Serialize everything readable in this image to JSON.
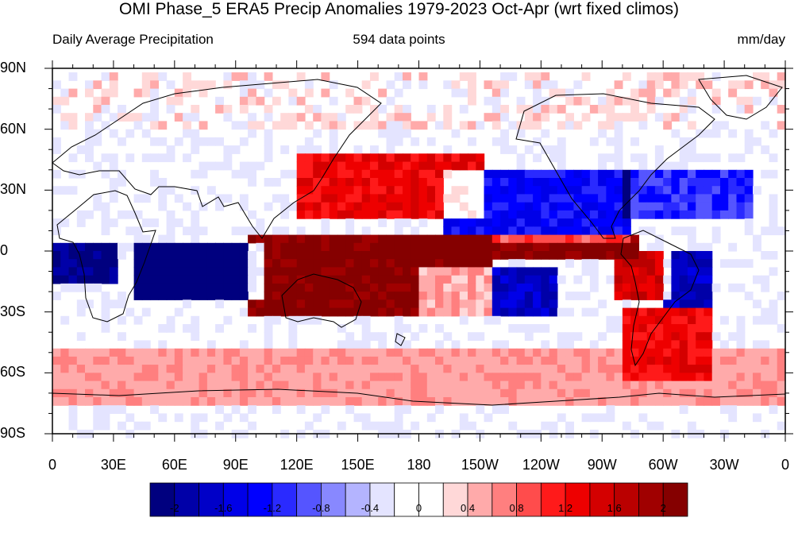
{
  "title": "OMI Phase_5 ERA5 Precip Anomalies 1979-2023 Oct-Apr (wrt fixed climos)",
  "subtitle_left": "Daily Average Precipitation",
  "subtitle_center": "594 data points",
  "subtitle_right": "mm/day",
  "lat_labels": [
    "90N",
    "60N",
    "30N",
    "0",
    "30S",
    "60S",
    "90S"
  ],
  "lon_labels": [
    "0",
    "30E",
    "60E",
    "90E",
    "120E",
    "150E",
    "180",
    "150W",
    "120W",
    "90W",
    "60W",
    "30W",
    "0"
  ],
  "colorbar": {
    "colors": [
      "#00007f",
      "#0000a8",
      "#0000c8",
      "#0000e8",
      "#0000ff",
      "#2a2aff",
      "#5555ff",
      "#8888ff",
      "#b4b4ff",
      "#e4e4ff",
      "#ffffff",
      "#ffffff",
      "#ffd8d8",
      "#ffaaaa",
      "#ff7f7f",
      "#ff4c4c",
      "#ff1a1a",
      "#ee0000",
      "#d40000",
      "#ba0000",
      "#a00000",
      "#850000"
    ],
    "labels": [
      "-2",
      "-1.6",
      "-1.2",
      "-0.8",
      "-0.4",
      "0",
      "0.4",
      "0.8",
      "1.2",
      "1.6",
      "2"
    ]
  },
  "map_data": {
    "projection": "cylindrical-equidistant",
    "lon_range": [
      0,
      360
    ],
    "lat_range": [
      -90,
      90
    ],
    "variable": "precipitation anomaly",
    "units": "mm/day",
    "wet_anomaly_regions": [
      {
        "lon": [
          95,
          215
        ],
        "lat": [
          -30,
          10
        ],
        "strength": 2.2
      },
      {
        "lon": [
          160,
          285
        ],
        "lat": [
          0,
          10
        ],
        "strength": 2.2
      },
      {
        "lon": [
          120,
          210
        ],
        "lat": [
          20,
          50
        ],
        "strength": 1.4
      },
      {
        "lon": [
          280,
          320
        ],
        "lat": [
          -60,
          -25
        ],
        "strength": 1.4
      },
      {
        "lon": [
          275,
          300
        ],
        "lat": [
          -20,
          0
        ],
        "strength": 1.6
      }
    ],
    "dry_anomaly_regions": [
      {
        "lon": [
          40,
          100
        ],
        "lat": [
          -20,
          5
        ],
        "strength": -2.2
      },
      {
        "lon": [
          0,
          30
        ],
        "lat": [
          -15,
          5
        ],
        "strength": -2.0
      },
      {
        "lon": [
          180,
          245
        ],
        "lat": [
          -30,
          -5
        ],
        "strength": -1.6
      },
      {
        "lon": [
          190,
          280
        ],
        "lat": [
          5,
          40
        ],
        "strength": -1.2
      },
      {
        "lon": [
          280,
          340
        ],
        "lat": [
          20,
          40
        ],
        "strength": -1.0
      },
      {
        "lon": [
          300,
          320
        ],
        "lat": [
          -25,
          0
        ],
        "strength": -1.6
      }
    ]
  }
}
